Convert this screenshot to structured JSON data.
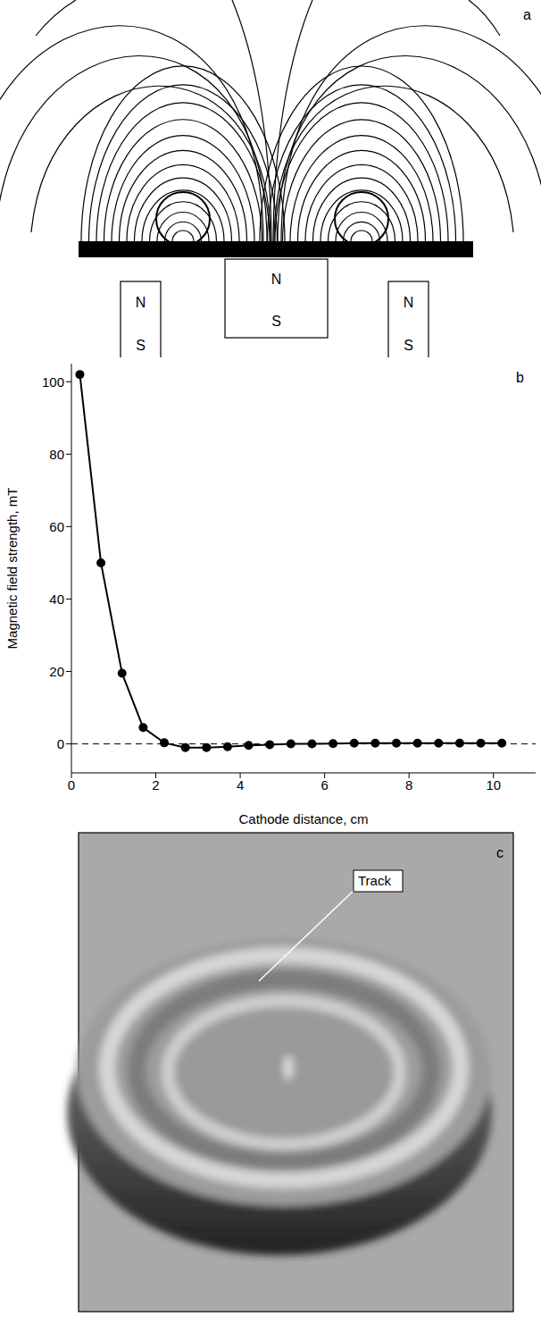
{
  "diagram": {
    "letter": "a",
    "magnets": [
      {
        "top": "N",
        "bottom": "S"
      },
      {
        "top": "N",
        "bottom": "S"
      },
      {
        "top": "N",
        "bottom": "S"
      }
    ]
  },
  "chart_data": {
    "type": "line",
    "annotations": [
      "b"
    ],
    "x_label": "Cathode distance, cm",
    "y_label": "Magnetic field strength, mT",
    "x": [
      0.2,
      0.7,
      1.2,
      1.7,
      2.2,
      2.7,
      3.2,
      3.7,
      4.2,
      4.7,
      5.2,
      5.7,
      6.2,
      6.7,
      7.2,
      7.7,
      8.2,
      8.7,
      9.2,
      9.7,
      10.2
    ],
    "values": [
      102,
      50,
      19.5,
      4.5,
      0.3,
      -1,
      -1,
      -0.8,
      -0.4,
      -0.2,
      0,
      0,
      0.1,
      0.2,
      0.2,
      0.2,
      0.2,
      0.2,
      0.2,
      0.2,
      0.2
    ],
    "color": "#000000",
    "marker": "circle",
    "xlim": [
      0,
      11
    ],
    "ylim": [
      -8,
      105
    ],
    "xticks": [
      0,
      2,
      4,
      6,
      8,
      10
    ],
    "yticks": [
      0,
      20,
      40,
      60,
      80,
      100
    ],
    "zero_line": {
      "value": 0,
      "line_style": "dashed"
    }
  },
  "photo": {
    "letter": "c",
    "label": "Track"
  }
}
